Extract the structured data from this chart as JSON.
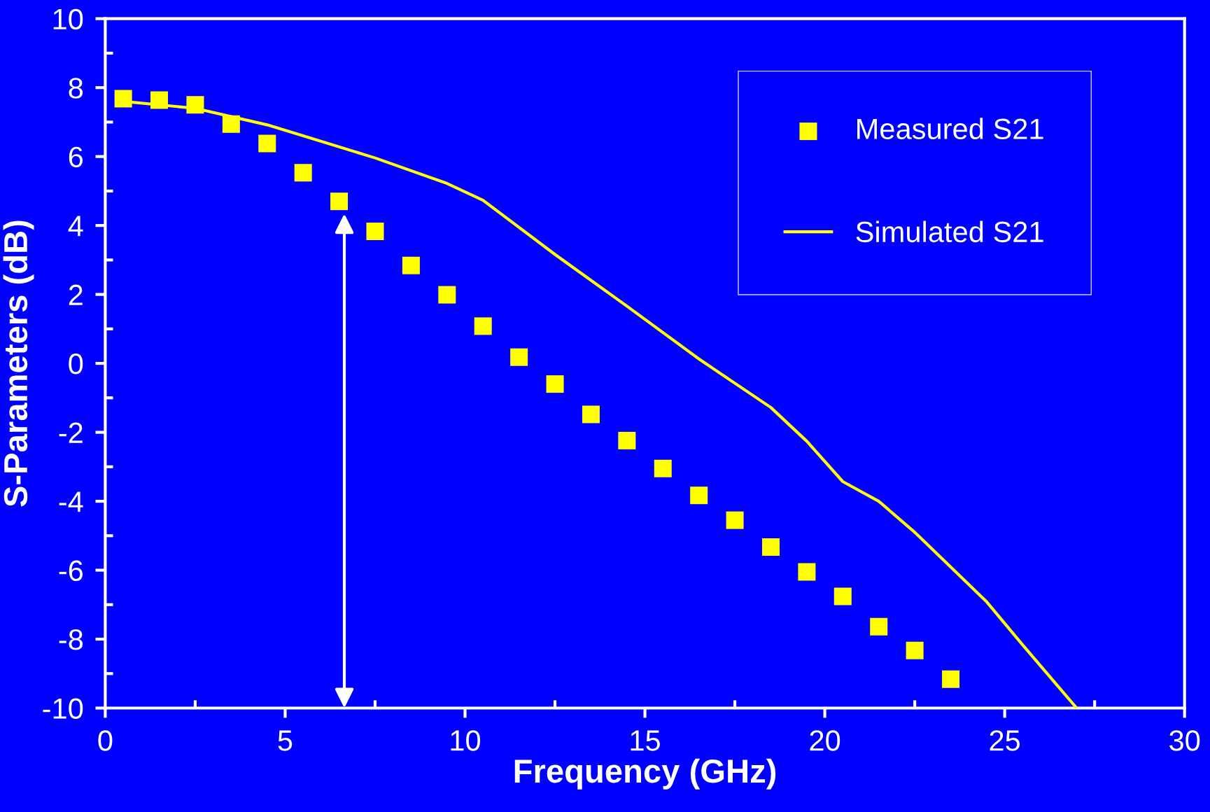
{
  "chart_data": {
    "type": "line",
    "xlabel": "Frequency (GHz)",
    "ylabel": "S-Parameters (dB)",
    "xlim": [
      0,
      30
    ],
    "ylim": [
      -10,
      10
    ],
    "xticks": [
      0,
      {
        "value": 2.5,
        "label": null
      },
      5,
      {
        "value": 7.5,
        "label": null
      },
      10,
      {
        "value": 12.5,
        "label": null
      },
      15,
      {
        "value": 17.5,
        "label": null
      },
      20,
      {
        "value": 22.5,
        "label": null
      },
      25,
      {
        "value": 27.5,
        "label": null
      },
      30
    ],
    "yticks": [
      -10,
      {
        "value": -9,
        "label": null
      },
      -8,
      {
        "value": -7,
        "label": null
      },
      -6,
      {
        "value": -5,
        "label": null
      },
      -4,
      {
        "value": -3,
        "label": null
      },
      -2,
      {
        "value": -1,
        "label": null
      },
      0,
      {
        "value": 1,
        "label": null
      },
      2,
      {
        "value": 3,
        "label": null
      },
      4,
      {
        "value": 5,
        "label": null
      },
      6,
      {
        "value": 7,
        "label": null
      },
      8,
      {
        "value": 9,
        "label": null
      },
      10
    ],
    "grid": false,
    "legend": "top right",
    "series": [
      {
        "name": "Measured S21",
        "type": "scatter",
        "marker": "square",
        "color": "#ffff00",
        "x": [
          0.5,
          1.5,
          2.5,
          3.5,
          4.5,
          5.5,
          6.5,
          7.5,
          8.5,
          9.5,
          10.5,
          11.5,
          12.5,
          13.5,
          14.5,
          15.5,
          16.5,
          17.5,
          18.5,
          19.5,
          20.5,
          21.5,
          22.5,
          23.5
        ],
        "values": [
          7.68,
          7.64,
          7.5,
          6.94,
          6.38,
          5.53,
          4.7,
          3.83,
          2.84,
          1.99,
          1.08,
          0.18,
          -0.6,
          -1.48,
          -2.24,
          -3.05,
          -3.83,
          -4.55,
          -5.33,
          -6.05,
          -6.76,
          -7.64,
          -8.33,
          -9.16
        ]
      },
      {
        "name": "Simulated S21",
        "line_style": "solid",
        "color": "#ffff00",
        "x": [
          0.5,
          2.5,
          4.5,
          5.5,
          7.5,
          9.5,
          10.5,
          12.5,
          14.5,
          16.5,
          18.5,
          19.5,
          20.5,
          21.5,
          22.5,
          24.5,
          25.5,
          27
        ],
        "values": [
          7.6,
          7.4,
          6.92,
          6.6,
          5.96,
          5.22,
          4.73,
          3.16,
          1.66,
          0.13,
          -1.28,
          -2.26,
          -3.43,
          -4.0,
          -4.9,
          -6.92,
          -8.17,
          -10
        ]
      }
    ]
  }
}
